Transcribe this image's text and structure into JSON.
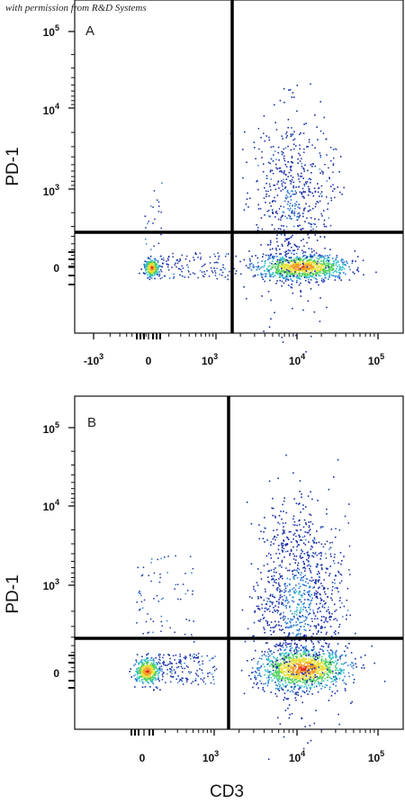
{
  "credit": "with permission from R&D Systems",
  "chart_data": [
    {
      "type": "scatter",
      "panel": "A",
      "xlabel": "CD3",
      "ylabel": "PD-1",
      "x_ticks": [
        "-10^3",
        "0",
        "10^3",
        "10^4",
        "10^5"
      ],
      "y_ticks": [
        "0",
        "10^3",
        "10^4",
        "10^5"
      ],
      "scale": "biexponential",
      "quadrant_gate": {
        "x": 2000,
        "y": 300
      },
      "populations": [
        {
          "name_hint": "CD3-PD1-",
          "center": [
            0,
            0
          ],
          "density": "high"
        },
        {
          "name_hint": "CD3+PD1-",
          "center": [
            10000,
            0
          ],
          "density": "high"
        },
        {
          "name_hint": "CD3+PD1+",
          "center": [
            9000,
            1500
          ],
          "density": "low"
        }
      ]
    },
    {
      "type": "scatter",
      "panel": "B",
      "xlabel": "CD3",
      "ylabel": "PD-1",
      "x_ticks": [
        "0",
        "10^3",
        "10^4",
        "10^5"
      ],
      "y_ticks": [
        "0",
        "10^3",
        "10^4",
        "10^5"
      ],
      "scale": "biexponential",
      "quadrant_gate": {
        "x": 1500,
        "y": 250
      },
      "populations": [
        {
          "name_hint": "CD3-PD1-",
          "center": [
            0,
            0
          ],
          "density": "high"
        },
        {
          "name_hint": "CD3+PD1-",
          "center": [
            12000,
            0
          ],
          "density": "high"
        },
        {
          "name_hint": "CD3+PD1+",
          "center": [
            11000,
            1200
          ],
          "density": "medium"
        }
      ]
    }
  ],
  "colors": {
    "axis": "#111111",
    "gate": "#000000",
    "density_scale": [
      "#1a2fa8",
      "#2f7fd6",
      "#33c0c7",
      "#4fcf5a",
      "#e8e03a",
      "#f39a23",
      "#e02418"
    ]
  }
}
